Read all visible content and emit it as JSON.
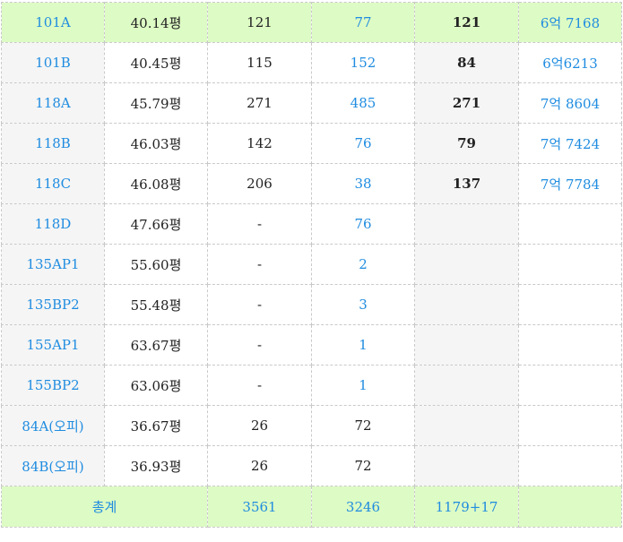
{
  "rows": [
    {
      "type": "101A",
      "area": "40.14평",
      "c3": "121",
      "c4": "77",
      "c5": "121",
      "c6": "6억 7168",
      "highlight": true
    },
    {
      "type": "101B",
      "area": "40.45평",
      "c3": "115",
      "c4": "152",
      "c5": "84",
      "c6": "6억6213",
      "highlight": false
    },
    {
      "type": "118A",
      "area": "45.79평",
      "c3": "271",
      "c4": "485",
      "c5": "271",
      "c6": "7억 8604",
      "highlight": false
    },
    {
      "type": "118B",
      "area": "46.03평",
      "c3": "142",
      "c4": "76",
      "c5": "79",
      "c6": "7억 7424",
      "highlight": false
    },
    {
      "type": "118C",
      "area": "46.08평",
      "c3": "206",
      "c4": "38",
      "c5": "137",
      "c6": "7억 7784",
      "highlight": false
    },
    {
      "type": "118D",
      "area": "47.66평",
      "c3": "-",
      "c4": "76",
      "c5": "",
      "c6": "",
      "highlight": false
    },
    {
      "type": "135AP1",
      "area": "55.60평",
      "c3": "-",
      "c4": "2",
      "c5": "",
      "c6": "",
      "highlight": false
    },
    {
      "type": "135BP2",
      "area": "55.48평",
      "c3": "-",
      "c4": "3",
      "c5": "",
      "c6": "",
      "highlight": false
    },
    {
      "type": "155AP1",
      "area": "63.67평",
      "c3": "-",
      "c4": "1",
      "c5": "",
      "c6": "",
      "highlight": false
    },
    {
      "type": "155BP2",
      "area": "63.06평",
      "c3": "-",
      "c4": "1",
      "c5": "",
      "c6": "",
      "highlight": false
    },
    {
      "type": "84A(오피)",
      "area": "36.67평",
      "c3": "26",
      "c4": "72",
      "c5": "",
      "c6": "",
      "highlight": false
    },
    {
      "type": "84B(오피)",
      "area": "36.93평",
      "c3": "26",
      "c4": "72",
      "c5": "",
      "c6": "",
      "highlight": false
    }
  ],
  "total": {
    "label": "총계",
    "c3": "3561",
    "c4": "3246",
    "c5": "1179+17",
    "c6": ""
  },
  "colors": {
    "highlight": "#ddfbc4",
    "stripe": "#f5f5f5",
    "blue": "#1f8ce0"
  }
}
